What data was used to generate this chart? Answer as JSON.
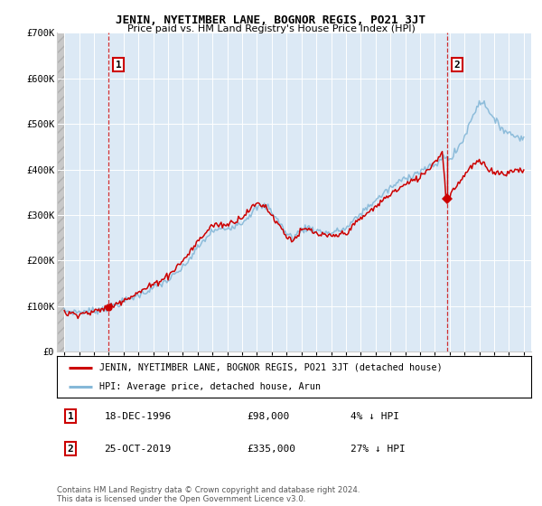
{
  "title": "JENIN, NYETIMBER LANE, BOGNOR REGIS, PO21 3JT",
  "subtitle": "Price paid vs. HM Land Registry's House Price Index (HPI)",
  "legend_line1": "JENIN, NYETIMBER LANE, BOGNOR REGIS, PO21 3JT (detached house)",
  "legend_line2": "HPI: Average price, detached house, Arun",
  "annotation1_date": "18-DEC-1996",
  "annotation1_price": "£98,000",
  "annotation1_change": "4% ↓ HPI",
  "annotation2_date": "25-OCT-2019",
  "annotation2_price": "£335,000",
  "annotation2_change": "27% ↓ HPI",
  "sale1_x": 1996.96,
  "sale1_y": 98000,
  "sale2_x": 2019.81,
  "sale2_y": 335000,
  "sale2_prev_y": 430000,
  "ylim": [
    0,
    700000
  ],
  "yticks": [
    0,
    100000,
    200000,
    300000,
    400000,
    500000,
    600000,
    700000
  ],
  "ytick_labels": [
    "£0",
    "£100K",
    "£200K",
    "£300K",
    "£400K",
    "£500K",
    "£600K",
    "£700K"
  ],
  "xlim_start": 1993.5,
  "xlim_end": 2025.5,
  "xtick_years": [
    1994,
    1995,
    1996,
    1997,
    1998,
    1999,
    2000,
    2001,
    2002,
    2003,
    2004,
    2005,
    2006,
    2007,
    2008,
    2009,
    2010,
    2011,
    2012,
    2013,
    2014,
    2015,
    2016,
    2017,
    2018,
    2019,
    2020,
    2021,
    2022,
    2023,
    2024,
    2025
  ],
  "hpi_color": "#85b8d8",
  "sold_color": "#cc0000",
  "dashed_color": "#cc0000",
  "background_color": "#dce9f5",
  "footnote": "Contains HM Land Registry data © Crown copyright and database right 2024.\nThis data is licensed under the Open Government Licence v3.0."
}
